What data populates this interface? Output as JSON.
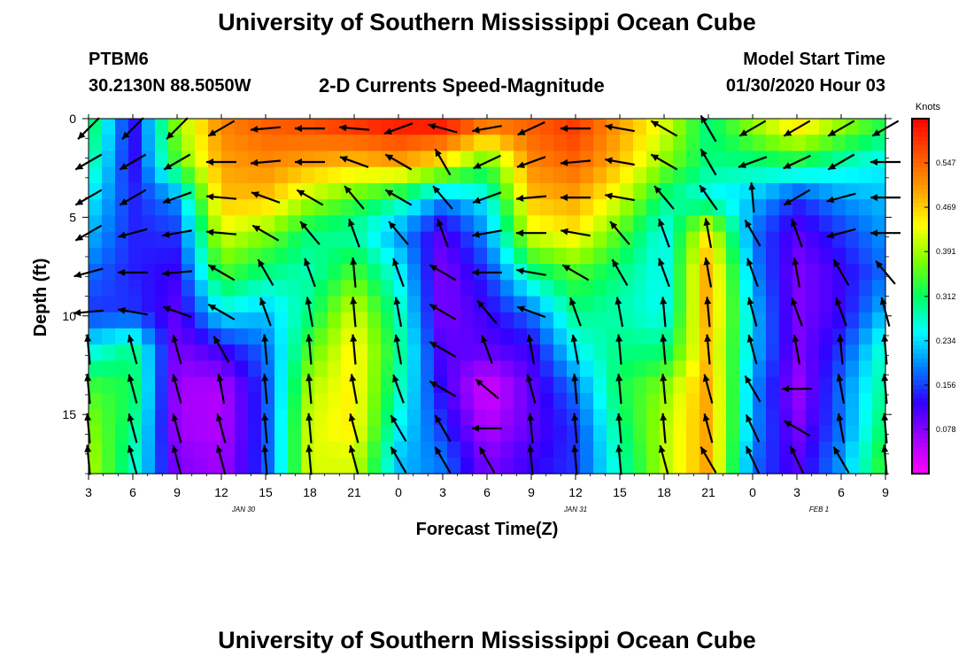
{
  "header": {
    "title": "University of Southern Mississippi Ocean Cube",
    "station_id": "PTBM6",
    "station_coords": "30.2130N 88.5050W",
    "subtitle": "2-D Currents Speed-Magnitude",
    "model_start_label": "Model Start Time",
    "model_start_value": "01/30/2020 Hour 03"
  },
  "footer": {
    "title": "University of Southern Mississippi Ocean Cube"
  },
  "colors": {
    "scale": [
      "#ff00ff",
      "#a000ff",
      "#3000ff",
      "#0080ff",
      "#00ffff",
      "#00ff60",
      "#80ff00",
      "#ffff00",
      "#ffa000",
      "#ff5000",
      "#ff0000"
    ],
    "arrow": "#000000"
  },
  "chart_data": {
    "type": "heatmap",
    "title": "2-D Currents Speed-Magnitude",
    "xlabel": "Forecast Time(Z)",
    "ylabel": "Depth (ft)",
    "x_tick_labels": [
      "3",
      "6",
      "9",
      "12",
      "15",
      "18",
      "21",
      "0",
      "3",
      "6",
      "9",
      "12",
      "15",
      "18",
      "21",
      "0",
      "3",
      "6",
      "9"
    ],
    "x_hours_from_start": [
      0,
      3,
      6,
      9,
      12,
      15,
      18,
      21,
      24,
      27,
      30,
      33,
      36,
      39,
      42,
      45,
      48,
      51,
      54
    ],
    "date_labels": [
      {
        "text": "JAN 30",
        "hour": 10.5
      },
      {
        "text": "JAN 31",
        "hour": 33
      },
      {
        "text": "FEB 1",
        "hour": 49.5
      }
    ],
    "y_tick_labels": [
      "0",
      "5",
      "10",
      "15"
    ],
    "y_ticks": [
      0,
      5,
      10,
      15
    ],
    "ylim": [
      0,
      18
    ],
    "xlim": [
      0,
      54
    ],
    "colorbar": {
      "unit": "Knots",
      "tick_labels": [
        "0.547",
        "0.469",
        "0.391",
        "0.312",
        "0.234",
        "0.156",
        "0.078"
      ],
      "ticks": [
        0.547,
        0.469,
        0.391,
        0.312,
        0.234,
        0.156,
        0.078
      ],
      "range": [
        0.0,
        0.625
      ]
    },
    "depth_levels_ft": [
      0.5,
      2.2,
      4.0,
      5.8,
      7.8,
      9.8,
      11.7,
      13.7,
      15.7,
      17.3
    ],
    "time_hours": [
      0,
      3,
      6,
      9,
      12,
      15,
      18,
      21,
      24,
      27,
      30,
      33,
      36,
      39,
      42,
      45,
      48,
      51,
      54
    ],
    "speed_knots": [
      [
        0.33,
        0.12,
        0.38,
        0.52,
        0.55,
        0.56,
        0.58,
        0.6,
        0.6,
        0.52,
        0.55,
        0.58,
        0.5,
        0.42,
        0.3,
        0.38,
        0.45,
        0.38,
        0.32
      ],
      [
        0.3,
        0.12,
        0.35,
        0.5,
        0.52,
        0.5,
        0.48,
        0.5,
        0.45,
        0.35,
        0.52,
        0.55,
        0.48,
        0.38,
        0.3,
        0.3,
        0.32,
        0.28,
        0.25
      ],
      [
        0.25,
        0.14,
        0.2,
        0.48,
        0.48,
        0.4,
        0.35,
        0.3,
        0.2,
        0.25,
        0.48,
        0.5,
        0.42,
        0.3,
        0.25,
        0.22,
        0.15,
        0.2,
        0.22
      ],
      [
        0.22,
        0.14,
        0.15,
        0.42,
        0.38,
        0.3,
        0.28,
        0.2,
        0.1,
        0.2,
        0.42,
        0.45,
        0.35,
        0.25,
        0.45,
        0.18,
        0.1,
        0.15,
        0.2
      ],
      [
        0.18,
        0.14,
        0.12,
        0.35,
        0.3,
        0.28,
        0.35,
        0.25,
        0.08,
        0.15,
        0.3,
        0.35,
        0.3,
        0.25,
        0.5,
        0.2,
        0.08,
        0.12,
        0.18
      ],
      [
        0.15,
        0.15,
        0.1,
        0.25,
        0.22,
        0.3,
        0.42,
        0.28,
        0.08,
        0.12,
        0.18,
        0.3,
        0.28,
        0.25,
        0.5,
        0.22,
        0.08,
        0.12,
        0.22
      ],
      [
        0.25,
        0.3,
        0.08,
        0.12,
        0.18,
        0.35,
        0.45,
        0.3,
        0.1,
        0.1,
        0.12,
        0.25,
        0.3,
        0.3,
        0.48,
        0.22,
        0.08,
        0.15,
        0.28
      ],
      [
        0.35,
        0.32,
        0.06,
        0.05,
        0.16,
        0.4,
        0.45,
        0.28,
        0.12,
        0.02,
        0.1,
        0.18,
        0.32,
        0.38,
        0.5,
        0.2,
        0.06,
        0.18,
        0.3
      ],
      [
        0.38,
        0.3,
        0.06,
        0.05,
        0.16,
        0.42,
        0.45,
        0.25,
        0.15,
        0.05,
        0.1,
        0.15,
        0.3,
        0.4,
        0.5,
        0.2,
        0.08,
        0.18,
        0.32
      ],
      [
        0.4,
        0.28,
        0.08,
        0.06,
        0.16,
        0.42,
        0.42,
        0.22,
        0.18,
        0.08,
        0.12,
        0.15,
        0.28,
        0.4,
        0.5,
        0.18,
        0.1,
        0.2,
        0.35
      ]
    ],
    "direction_deg": [
      [
        225,
        225,
        225,
        240,
        265,
        270,
        275,
        250,
        285,
        260,
        245,
        270,
        280,
        300,
        330,
        240,
        240,
        240,
        240
      ],
      [
        240,
        240,
        240,
        270,
        265,
        270,
        290,
        300,
        330,
        245,
        250,
        265,
        280,
        300,
        330,
        250,
        245,
        240,
        270
      ],
      [
        240,
        240,
        250,
        275,
        290,
        300,
        320,
        300,
        320,
        250,
        265,
        270,
        280,
        320,
        325,
        355,
        240,
        255,
        270
      ],
      [
        240,
        255,
        260,
        275,
        300,
        320,
        340,
        320,
        340,
        260,
        270,
        280,
        320,
        340,
        350,
        330,
        340,
        255,
        270
      ],
      [
        255,
        270,
        265,
        300,
        330,
        340,
        355,
        340,
        300,
        270,
        280,
        300,
        330,
        340,
        350,
        340,
        350,
        330,
        320
      ],
      [
        265,
        280,
        290,
        300,
        340,
        350,
        355,
        350,
        300,
        320,
        290,
        340,
        350,
        355,
        355,
        345,
        340,
        340,
        345
      ],
      [
        355,
        345,
        345,
        330,
        355,
        355,
        355,
        350,
        300,
        340,
        350,
        350,
        355,
        355,
        355,
        345,
        350,
        355,
        355
      ],
      [
        355,
        345,
        345,
        350,
        355,
        355,
        350,
        340,
        300,
        310,
        345,
        355,
        355,
        355,
        345,
        330,
        270,
        350,
        355
      ],
      [
        355,
        345,
        345,
        345,
        355,
        355,
        345,
        330,
        330,
        270,
        355,
        355,
        355,
        355,
        345,
        335,
        300,
        350,
        355
      ],
      [
        355,
        345,
        345,
        345,
        355,
        355,
        345,
        330,
        330,
        330,
        355,
        355,
        355,
        345,
        330,
        335,
        335,
        330,
        355
      ]
    ]
  }
}
